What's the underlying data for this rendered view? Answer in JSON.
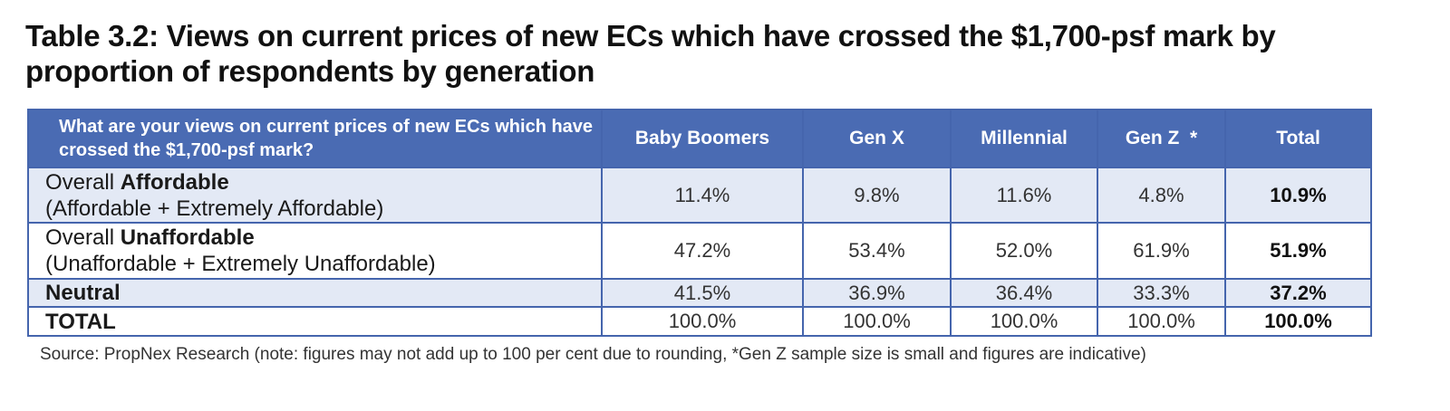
{
  "title": "Table 3.2: Views on current prices of new ECs which have crossed the $1,700-psf mark by proportion of respondents by generation",
  "table": {
    "question": "What are your views on current prices of new ECs which have crossed the $1,700-psf mark?",
    "columns": [
      "Baby Boomers",
      "Gen X",
      "Millennial",
      "Gen Z  *",
      "Total"
    ],
    "rows": [
      {
        "prefix": "Overall ",
        "bold": "Affordable",
        "sub": "(Affordable + Extremely Affordable)",
        "values": [
          "11.4%",
          "9.8%",
          "11.6%",
          "4.8%"
        ],
        "total": "10.9%"
      },
      {
        "prefix": "Overall ",
        "bold": "Unaffordable",
        "sub": "(Unaffordable + Extremely Unaffordable)",
        "values": [
          "47.2%",
          "53.4%",
          "52.0%",
          "61.9%"
        ],
        "total": "51.9%"
      },
      {
        "label": "Neutral",
        "values": [
          "41.5%",
          "36.9%",
          "36.4%",
          "33.3%"
        ],
        "total": "37.2%"
      },
      {
        "label": "TOTAL",
        "values": [
          "100.0%",
          "100.0%",
          "100.0%",
          "100.0%"
        ],
        "total": "100.0%"
      }
    ]
  },
  "source": "Source: PropNex Research (note: figures may not add up to 100 per cent due to rounding, *Gen Z sample size is small and figures are indicative)",
  "colors": {
    "header_bg": "#4a6bb3",
    "border": "#4565ad",
    "row_tint": "#e3e9f5"
  }
}
